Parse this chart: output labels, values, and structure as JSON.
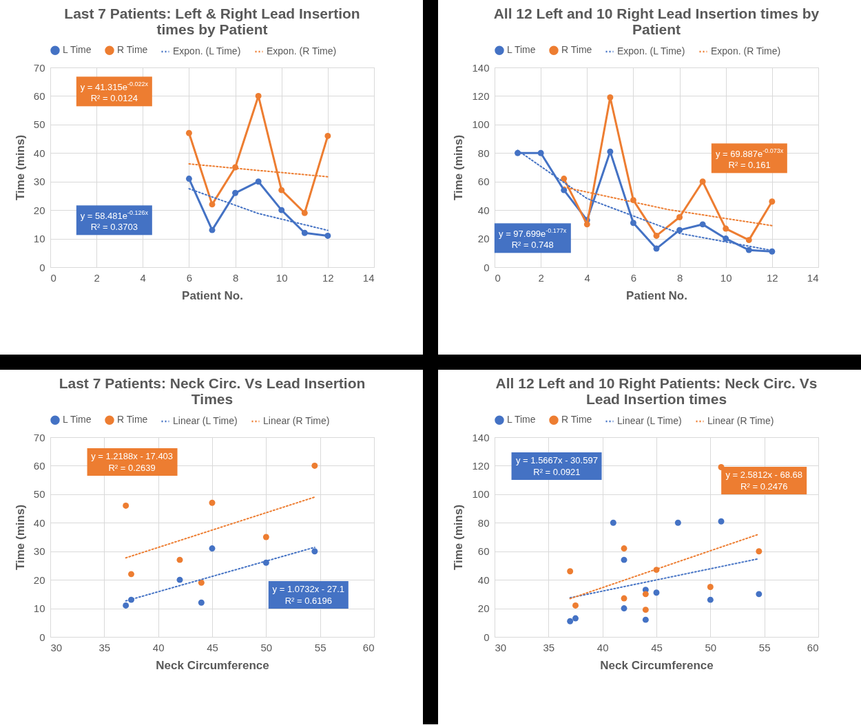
{
  "chart_data": [
    {
      "type": "line",
      "title": "Last 7 Patients: Left & Right Lead Insertion times by Patient",
      "xlabel": "Patient No.",
      "ylabel": "Time (mins)",
      "xlim": [
        0,
        14
      ],
      "xticks": [
        0,
        2,
        4,
        6,
        8,
        10,
        12,
        14
      ],
      "ylim": [
        0,
        70
      ],
      "yticks": [
        0,
        10,
        20,
        30,
        40,
        50,
        60,
        70
      ],
      "grid": true,
      "legend": "top",
      "marker": "circle",
      "line_style": "solid",
      "series": [
        {
          "name": "L Time",
          "color": "#4472c4",
          "x": [
            6,
            7,
            8,
            9,
            10,
            11,
            12
          ],
          "values": [
            31,
            13,
            26,
            30,
            20,
            12,
            11
          ]
        },
        {
          "name": "R Time",
          "color": "#ed7d31",
          "x": [
            6,
            7,
            8,
            9,
            10,
            11,
            12
          ],
          "values": [
            47,
            22,
            35,
            60,
            27,
            19,
            46
          ]
        },
        {
          "name": "Expon. (L Time)",
          "type": "line",
          "color": "#4472c4",
          "line_style": "dotted",
          "marker": "none",
          "x": [
            6,
            9,
            12
          ],
          "values": [
            27.5,
            18.8,
            12.9
          ]
        },
        {
          "name": "Expon. (R Time)",
          "type": "line",
          "color": "#ed7d31",
          "line_style": "dotted",
          "marker": "none",
          "x": [
            6,
            9,
            12
          ],
          "values": [
            36.2,
            33.9,
            31.7
          ]
        }
      ],
      "annotations": [
        "y = 41.315e$^{-0.022x}$\nR² = 0.0124",
        "y = 58.481e$^{-0.126x}$\nR² = 0.3703"
      ]
    },
    {
      "type": "line",
      "title": "All 12 Left and 10 Right Lead Insertion times by Patient",
      "xlabel": "Patient No.",
      "ylabel": "Time (mins)",
      "xlim": [
        0,
        14
      ],
      "xticks": [
        0,
        2,
        4,
        6,
        8,
        10,
        12,
        14
      ],
      "ylim": [
        0,
        140
      ],
      "yticks": [
        0,
        20,
        40,
        60,
        80,
        100,
        120,
        140
      ],
      "grid": true,
      "legend": "top",
      "marker": "circle",
      "line_style": "solid",
      "series": [
        {
          "name": "L Time",
          "color": "#4472c4",
          "x": [
            1,
            2,
            3,
            4,
            5,
            6,
            7,
            8,
            9,
            10,
            11,
            12
          ],
          "values": [
            80,
            80,
            54,
            33,
            81,
            31,
            13,
            26,
            30,
            20,
            12,
            11
          ]
        },
        {
          "name": "R Time",
          "color": "#ed7d31",
          "x": [
            3,
            4,
            5,
            6,
            7,
            8,
            9,
            10,
            11,
            12
          ],
          "values": [
            62,
            30,
            119,
            47,
            22,
            35,
            60,
            27,
            19,
            46
          ]
        },
        {
          "name": "Expon. (L Time)",
          "type": "line",
          "color": "#4472c4",
          "line_style": "dotted",
          "marker": "none",
          "x": [
            1,
            4,
            8,
            12
          ],
          "values": [
            81.9,
            48.1,
            23.7,
            11.7
          ]
        },
        {
          "name": "Expon. (R Time)",
          "type": "line",
          "color": "#ed7d31",
          "line_style": "dotted",
          "marker": "none",
          "x": [
            3,
            7.5,
            12
          ],
          "values": [
            56.1,
            40.4,
            29.1
          ]
        }
      ],
      "annotations": [
        "y = 97.699e$^{-0.177x}$\nR² = 0.748",
        "y = 69.887e$^{-0.073x}$\nR² = 0.161"
      ]
    },
    {
      "type": "scatter",
      "title": "Last 7 Patients: Neck Circ. Vs Lead Insertion Times",
      "xlabel": "Neck Circumference",
      "ylabel": "Time (mins)",
      "xlim": [
        30,
        60
      ],
      "xticks": [
        30,
        35,
        40,
        45,
        50,
        55,
        60
      ],
      "ylim": [
        0,
        70
      ],
      "yticks": [
        0,
        10,
        20,
        30,
        40,
        50,
        60,
        70
      ],
      "grid": true,
      "legend": "top",
      "marker": "circle",
      "series": [
        {
          "name": "L Time",
          "color": "#4472c4",
          "x": [
            37,
            37.5,
            42,
            44,
            45,
            50,
            54.5
          ],
          "values": [
            11,
            13,
            20,
            12,
            31,
            26,
            30
          ]
        },
        {
          "name": "R Time",
          "color": "#ed7d31",
          "x": [
            37,
            37.5,
            42,
            44,
            45,
            50,
            54.5
          ],
          "values": [
            46,
            22,
            27,
            19,
            47,
            35,
            60
          ]
        },
        {
          "name": "Linear (L Time)",
          "type": "line",
          "color": "#4472c4",
          "line_style": "dotted",
          "marker": "none",
          "x": [
            37,
            54.5
          ],
          "values": [
            12.6,
            31.4
          ]
        },
        {
          "name": "Linear (R Time)",
          "type": "line",
          "color": "#ed7d31",
          "line_style": "dotted",
          "marker": "none",
          "x": [
            37,
            54.5
          ],
          "values": [
            27.7,
            49.0
          ]
        }
      ],
      "annotations": [
        "y = 1.2188x - 17.403\nR² = 0.2639",
        "y = 1.0732x - 27.1\nR² = 0.6196"
      ]
    },
    {
      "type": "scatter",
      "title": "All 12 Left and 10 Right Patients: Neck Circ. Vs Lead Insertion times",
      "xlabel": "Neck Circumference",
      "ylabel": "Time (mins)",
      "xlim": [
        30,
        60
      ],
      "xticks": [
        30,
        35,
        40,
        45,
        50,
        55,
        60
      ],
      "ylim": [
        0,
        140
      ],
      "yticks": [
        0,
        20,
        40,
        60,
        80,
        100,
        120,
        140
      ],
      "grid": true,
      "legend": "top",
      "marker": "circle",
      "series": [
        {
          "name": "L Time",
          "color": "#4472c4",
          "x": [
            37,
            37.5,
            41,
            42,
            42,
            44,
            44,
            45,
            47,
            50,
            51,
            54.5
          ],
          "values": [
            11,
            13,
            80,
            20,
            54,
            33,
            12,
            31,
            80,
            26,
            81,
            30
          ]
        },
        {
          "name": "R Time",
          "color": "#ed7d31",
          "x": [
            37,
            37.5,
            42,
            42,
            44,
            44,
            45,
            50,
            51,
            54.5
          ],
          "values": [
            46,
            22,
            62,
            27,
            30,
            19,
            47,
            35,
            119,
            60
          ]
        },
        {
          "name": "Linear (L Time)",
          "type": "line",
          "color": "#4472c4",
          "line_style": "dotted",
          "marker": "none",
          "x": [
            37,
            54.5
          ],
          "values": [
            27.4,
            54.8
          ]
        },
        {
          "name": "Linear (R Time)",
          "type": "line",
          "color": "#ed7d31",
          "line_style": "dotted",
          "marker": "none",
          "x": [
            37,
            54.5
          ],
          "values": [
            26.8,
            72.0
          ]
        }
      ],
      "annotations": [
        "y = 1.5667x - 30.597\nR² = 0.0921",
        "y = 2.5812x - 68.68\nR² = 0.2476"
      ]
    }
  ]
}
